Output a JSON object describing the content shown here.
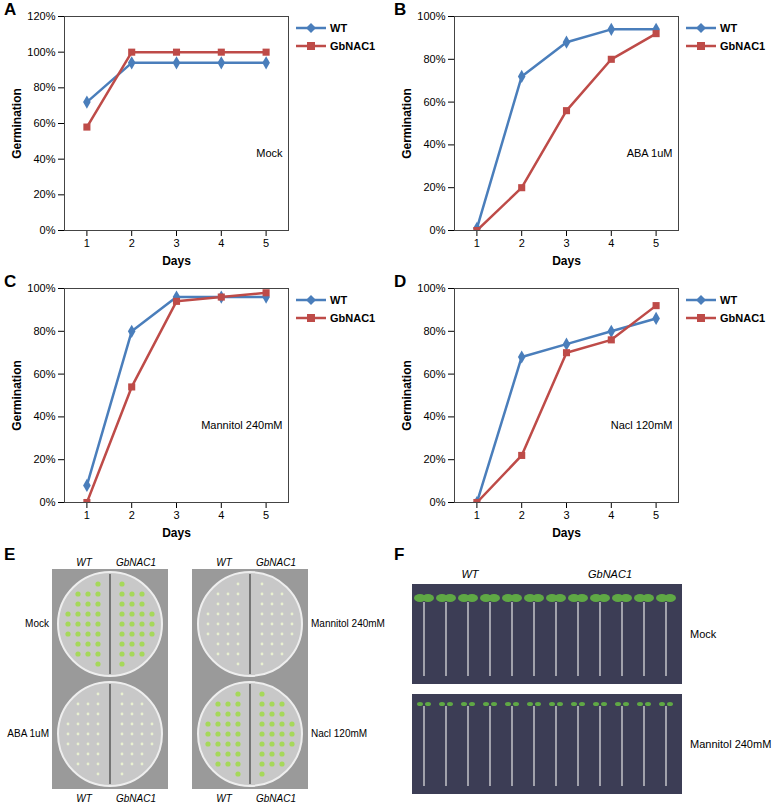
{
  "chart_data": [
    {
      "type": "line",
      "panel": "A",
      "annotation": "Mock",
      "xlabel": "Days",
      "ylabel": "Germination",
      "x": [
        1,
        2,
        3,
        4,
        5
      ],
      "xlim": [
        0.5,
        5.5
      ],
      "xticks": [
        1,
        2,
        3,
        4,
        5
      ],
      "ylim": [
        0,
        120
      ],
      "yticks": [
        {
          "value": 0,
          "label": "0%"
        },
        {
          "value": 20,
          "label": "20%"
        },
        {
          "value": 40,
          "label": "40%"
        },
        {
          "value": 60,
          "label": "60%"
        },
        {
          "value": 80,
          "label": "80%"
        },
        {
          "value": 100,
          "label": "100%"
        },
        {
          "value": 120,
          "label": "120%"
        }
      ],
      "grid": false,
      "legend": "right",
      "series": [
        {
          "name": "WT",
          "color": "#4a7ebb",
          "marker": "diamond",
          "values": [
            72,
            94,
            94,
            94,
            94
          ]
        },
        {
          "name": "GbNAC1",
          "color": "#be4b48",
          "marker": "square",
          "values": [
            58,
            100,
            100,
            100,
            100
          ]
        }
      ]
    },
    {
      "type": "line",
      "panel": "B",
      "annotation": "ABA 1uM",
      "xlabel": "Days",
      "ylabel": "Germination",
      "x": [
        1,
        2,
        3,
        4,
        5
      ],
      "xlim": [
        0.5,
        5.5
      ],
      "xticks": [
        1,
        2,
        3,
        4,
        5
      ],
      "ylim": [
        0,
        100
      ],
      "yticks": [
        {
          "value": 0,
          "label": "0%"
        },
        {
          "value": 20,
          "label": "20%"
        },
        {
          "value": 40,
          "label": "40%"
        },
        {
          "value": 60,
          "label": "60%"
        },
        {
          "value": 80,
          "label": "80%"
        },
        {
          "value": 100,
          "label": "100%"
        }
      ],
      "grid": false,
      "legend": "right",
      "series": [
        {
          "name": "WT",
          "color": "#4a7ebb",
          "marker": "diamond",
          "values": [
            1,
            72,
            88,
            94,
            94
          ]
        },
        {
          "name": "GbNAC1",
          "color": "#be4b48",
          "marker": "square",
          "values": [
            0,
            20,
            56,
            80,
            92
          ]
        }
      ]
    },
    {
      "type": "line",
      "panel": "C",
      "annotation": "Mannitol 240mM",
      "xlabel": "Days",
      "ylabel": "Germination",
      "x": [
        1,
        2,
        3,
        4,
        5
      ],
      "xlim": [
        0.5,
        5.5
      ],
      "xticks": [
        1,
        2,
        3,
        4,
        5
      ],
      "ylim": [
        0,
        100
      ],
      "yticks": [
        {
          "value": 0,
          "label": "0%"
        },
        {
          "value": 20,
          "label": "20%"
        },
        {
          "value": 40,
          "label": "40%"
        },
        {
          "value": 60,
          "label": "60%"
        },
        {
          "value": 80,
          "label": "80%"
        },
        {
          "value": 100,
          "label": "100%"
        }
      ],
      "grid": false,
      "legend": "right",
      "series": [
        {
          "name": "WT",
          "color": "#4a7ebb",
          "marker": "diamond",
          "values": [
            8,
            80,
            96,
            96,
            96
          ]
        },
        {
          "name": "GbNAC1",
          "color": "#be4b48",
          "marker": "square",
          "values": [
            0,
            54,
            94,
            96,
            98
          ]
        }
      ]
    },
    {
      "type": "line",
      "panel": "D",
      "annotation": "Nacl 120mM",
      "xlabel": "Days",
      "ylabel": "Germination",
      "x": [
        1,
        2,
        3,
        4,
        5
      ],
      "xlim": [
        0.5,
        5.5
      ],
      "xticks": [
        1,
        2,
        3,
        4,
        5
      ],
      "ylim": [
        0,
        100
      ],
      "yticks": [
        {
          "value": 0,
          "label": "0%"
        },
        {
          "value": 20,
          "label": "20%"
        },
        {
          "value": 40,
          "label": "40%"
        },
        {
          "value": 60,
          "label": "60%"
        },
        {
          "value": 80,
          "label": "80%"
        },
        {
          "value": 100,
          "label": "100%"
        }
      ],
      "grid": false,
      "legend": "right",
      "series": [
        {
          "name": "WT",
          "color": "#4a7ebb",
          "marker": "diamond",
          "values": [
            0,
            68,
            74,
            80,
            86
          ]
        },
        {
          "name": "GbNAC1",
          "color": "#be4b48",
          "marker": "square",
          "values": [
            0,
            22,
            70,
            76,
            92
          ]
        }
      ]
    }
  ],
  "photos": [
    {
      "panel": "E",
      "plates": [
        {
          "condition": "Mock",
          "side": "left"
        },
        {
          "condition": "Mannitol 240mM",
          "side": "right"
        },
        {
          "condition": "ABA 1uM",
          "side": "left"
        },
        {
          "condition": "Nacl 120mM",
          "side": "right"
        }
      ],
      "top_labels": [
        "WT",
        "GbNAC1",
        "WT",
        "GbNAC1"
      ],
      "bottom_labels": [
        "WT",
        "GbNAC1",
        "WT",
        "GbNAC1"
      ]
    },
    {
      "panel": "F",
      "columns": [
        "WT",
        "GbNAC1"
      ],
      "rows": [
        "Mock",
        "Mannitol 240mM"
      ]
    }
  ]
}
